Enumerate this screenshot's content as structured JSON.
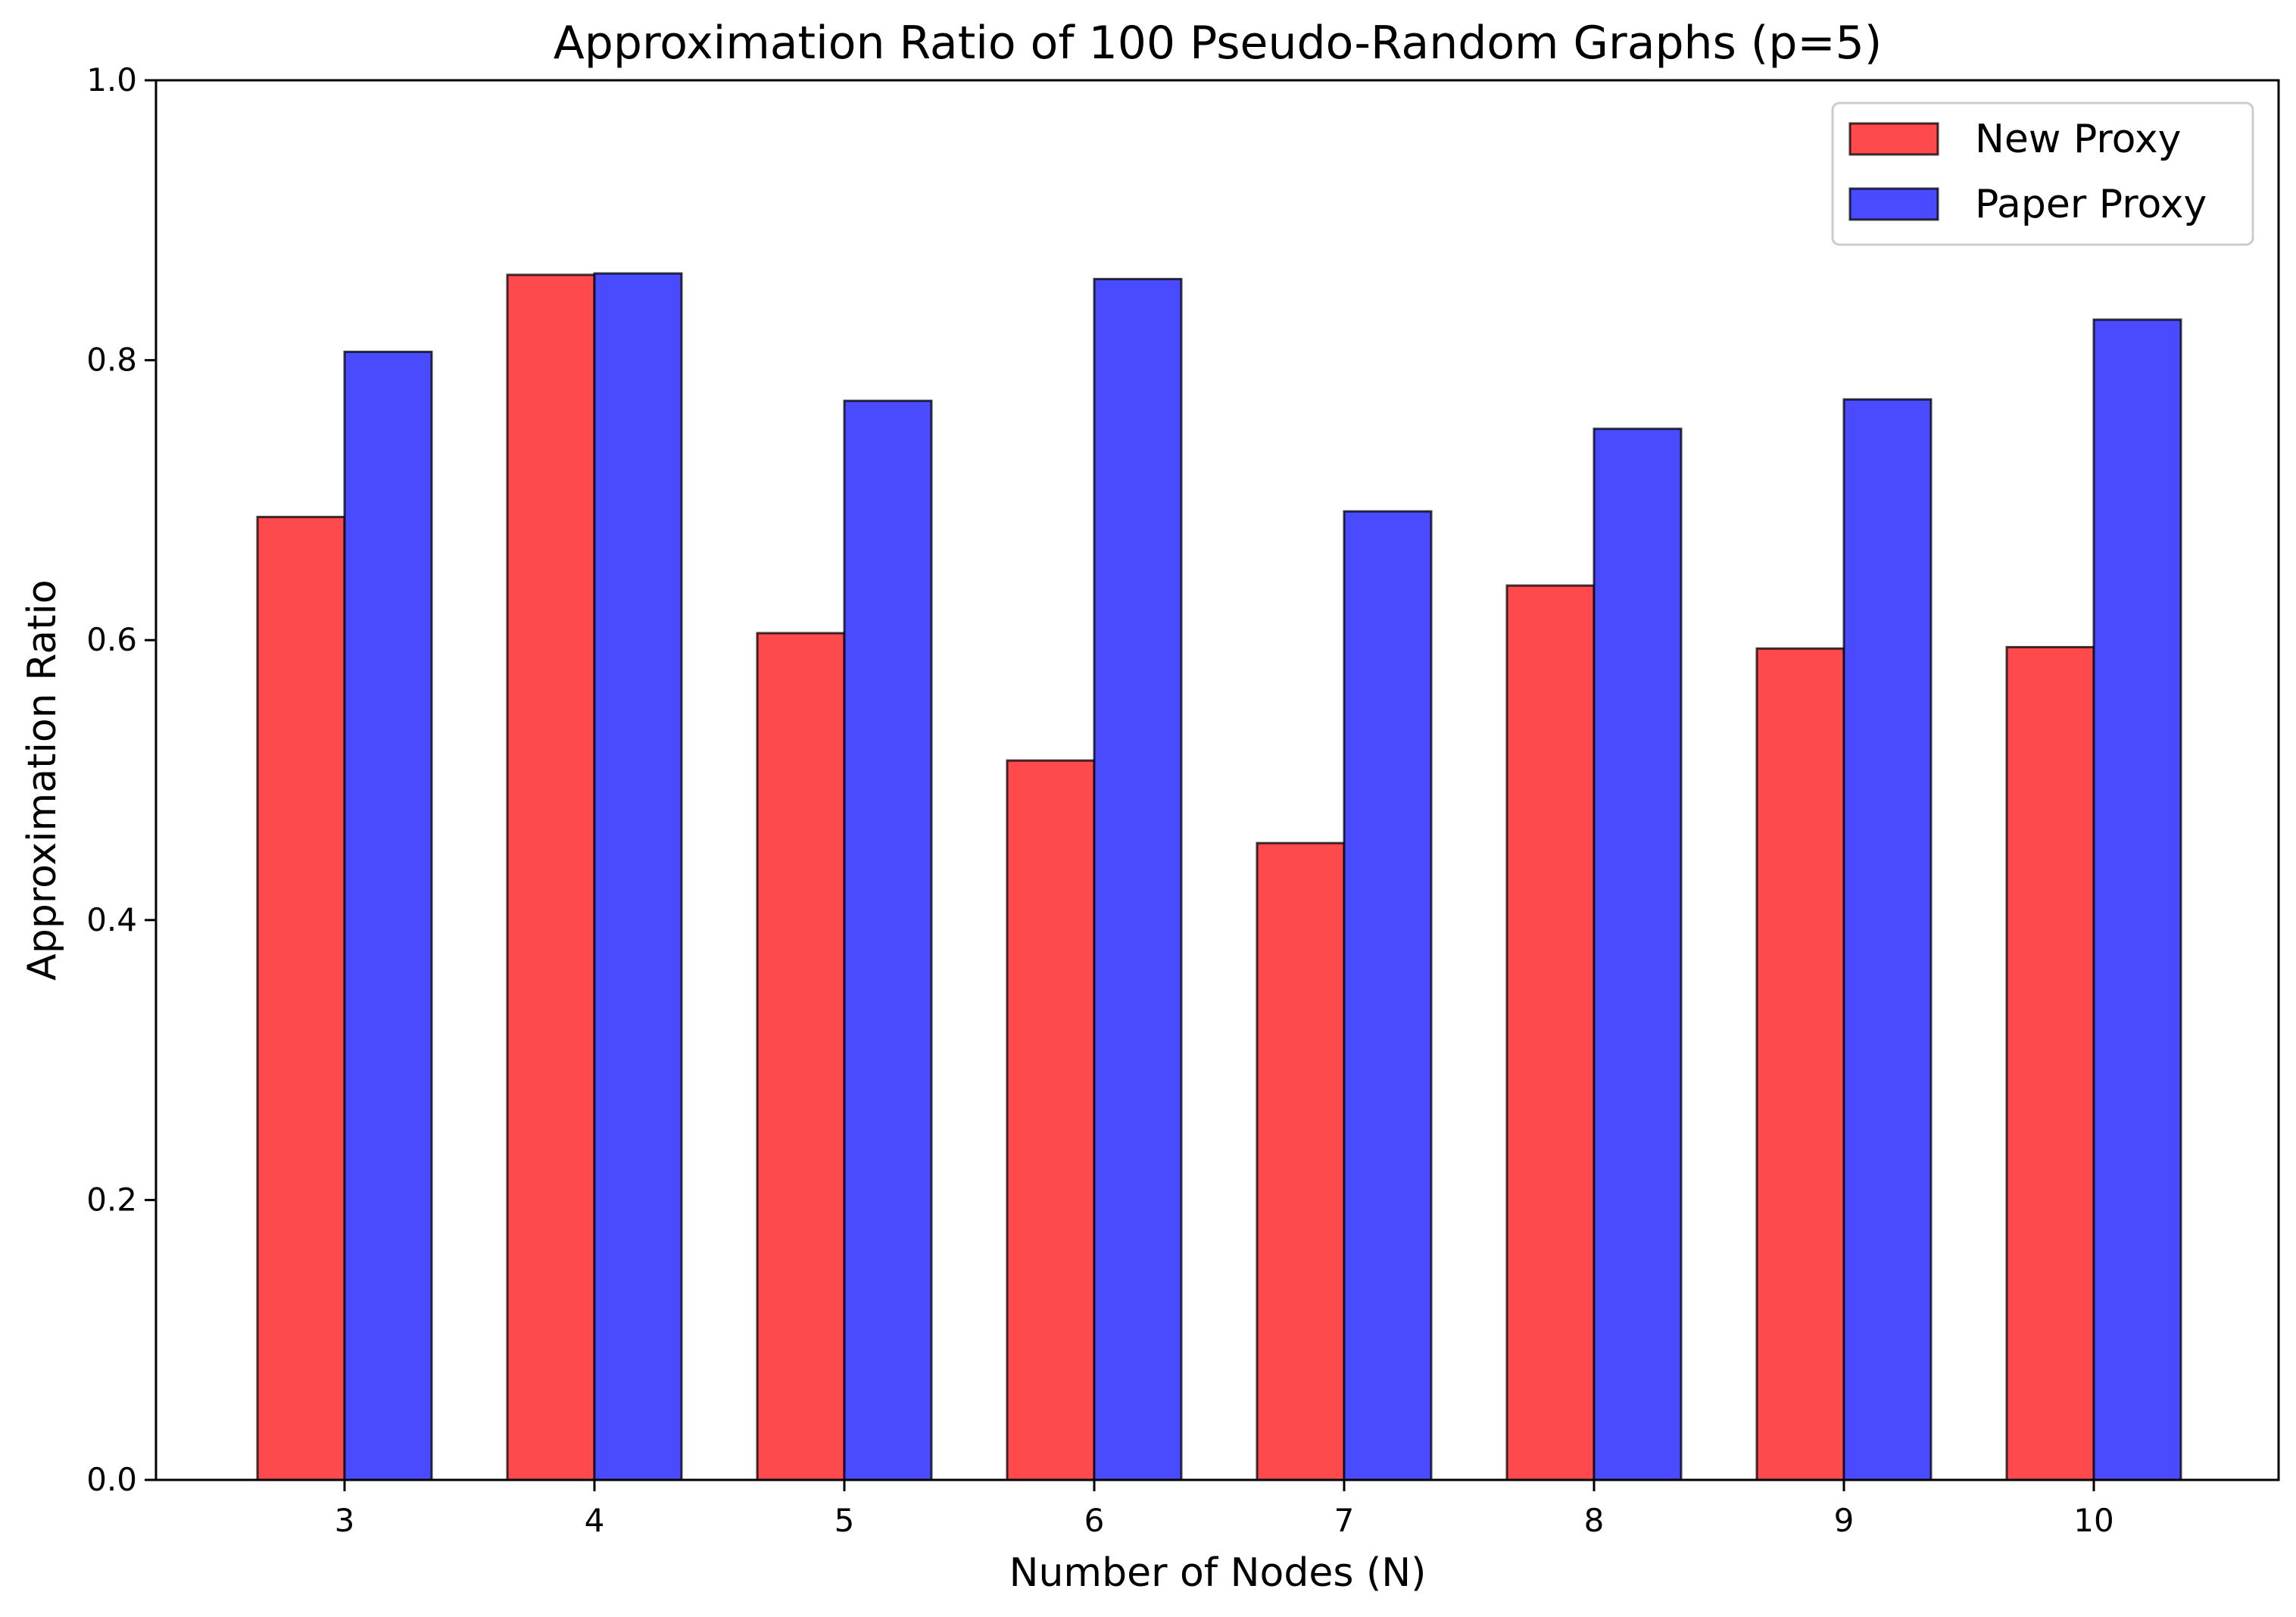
{
  "chart_data": {
    "type": "bar",
    "title": "Approximation Ratio of 100 Pseudo-Random Graphs (p=5)",
    "xlabel": "Number of Nodes (N)",
    "ylabel": "Approximation Ratio",
    "categories": [
      "3",
      "4",
      "5",
      "6",
      "7",
      "8",
      "9",
      "10"
    ],
    "series": [
      {
        "name": "New Proxy",
        "color": "#ff4a4d",
        "values": [
          0.688,
          0.861,
          0.605,
          0.514,
          0.455,
          0.639,
          0.594,
          0.595
        ]
      },
      {
        "name": "Paper Proxy",
        "color": "#4a4aff",
        "values": [
          0.806,
          0.862,
          0.771,
          0.858,
          0.692,
          0.751,
          0.772,
          0.829
        ]
      }
    ],
    "ylim": [
      0,
      1.0
    ],
    "yticks": [
      "0.0",
      "0.2",
      "0.4",
      "0.6",
      "0.8",
      "1.0"
    ],
    "grid": false,
    "legend_position": "top-right"
  }
}
